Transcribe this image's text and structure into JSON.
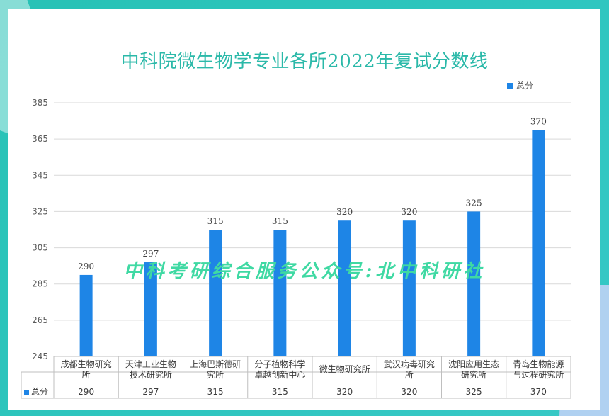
{
  "title": "中科院微生物学专业各所2022年复试分数线",
  "watermark": "中科考研综合服务公众号:北中科研社",
  "legend": {
    "label": "总分"
  },
  "colors": {
    "bar": "#1e85e6",
    "title": "#2bb9a9",
    "watermark": "#3fd9a3"
  },
  "chart_data": {
    "type": "bar",
    "title": "中科院微生物学专业各所2022年复试分数线",
    "categories": [
      [
        "成都生物研究",
        "所"
      ],
      [
        "天津工业生物",
        "技术研究所"
      ],
      [
        "上海巴斯德研",
        "究所"
      ],
      [
        "分子植物科学",
        "卓越创新中心"
      ],
      [
        "微生物研究所"
      ],
      [
        "武汉病毒研究",
        "所"
      ],
      [
        "沈阳应用生态",
        "研究所"
      ],
      [
        "青岛生物能源",
        "与过程研究所"
      ]
    ],
    "series": [
      {
        "name": "总分",
        "values": [
          290,
          297,
          315,
          315,
          320,
          320,
          325,
          370
        ]
      }
    ],
    "ylim": [
      245,
      385
    ],
    "yticks": [
      "245",
      "265",
      "285",
      "305",
      "325",
      "345",
      "365",
      "385"
    ],
    "grid": true,
    "legend_position": "top-right",
    "data_table": true,
    "table_row_label": "总分"
  }
}
